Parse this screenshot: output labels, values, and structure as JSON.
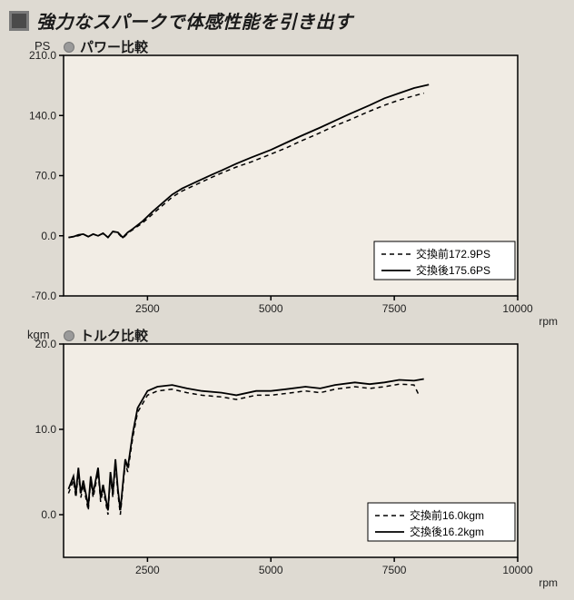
{
  "title": "強力なスパークで体感性能を引き出す",
  "background_color": "#dedad2",
  "plot_bg": "#f2ede5",
  "border_color": "#000000",
  "power_chart": {
    "type": "line",
    "title": "パワー比較",
    "y_unit": "PS",
    "x_unit": "rpm",
    "xlim": [
      800,
      10000
    ],
    "ylim": [
      -70,
      210
    ],
    "xticks": [
      2500,
      5000,
      7500,
      10000
    ],
    "yticks": [
      -70,
      0,
      70,
      140,
      210
    ],
    "ytick_labels": [
      "-70.0",
      "0.0",
      "70.0",
      "140.0",
      "210.0"
    ],
    "line_color": "#000000",
    "dash_pattern": "5 4",
    "line_width_solid": 1.8,
    "line_width_dash": 1.5,
    "legend": {
      "before": "交換前172.9PS",
      "after": "交換後175.6PS"
    },
    "series_before": {
      "rpm": [
        900,
        1000,
        1100,
        1200,
        1300,
        1400,
        1500,
        1600,
        1700,
        1800,
        1900,
        2000,
        2100,
        2200,
        2400,
        2600,
        2800,
        3000,
        3200,
        3500,
        3800,
        4000,
        4300,
        4600,
        5000,
        5300,
        5600,
        6000,
        6300,
        6600,
        7000,
        7300,
        7600,
        7900,
        8100
      ],
      "value": [
        -2,
        -1,
        0,
        2,
        -1,
        2,
        0,
        3,
        -2,
        5,
        3,
        -3,
        3,
        7,
        15,
        25,
        35,
        45,
        52,
        60,
        68,
        73,
        80,
        86,
        95,
        102,
        110,
        120,
        128,
        135,
        145,
        152,
        158,
        163,
        166
      ]
    },
    "series_after": {
      "rpm": [
        900,
        1000,
        1100,
        1200,
        1300,
        1400,
        1500,
        1600,
        1700,
        1800,
        1900,
        2000,
        2100,
        2200,
        2400,
        2600,
        2800,
        3000,
        3200,
        3500,
        3800,
        4000,
        4300,
        4600,
        5000,
        5300,
        5600,
        6000,
        6300,
        6600,
        7000,
        7300,
        7600,
        7900,
        8200
      ],
      "value": [
        -2,
        -1,
        1,
        2,
        -1,
        2,
        0,
        3,
        -2,
        5,
        4,
        -2,
        4,
        8,
        17,
        28,
        38,
        48,
        55,
        63,
        71,
        76,
        84,
        91,
        100,
        108,
        116,
        126,
        134,
        142,
        152,
        160,
        166,
        172,
        176
      ]
    }
  },
  "torque_chart": {
    "type": "line",
    "title": "トルク比較",
    "y_unit": "kgm",
    "x_unit": "rpm",
    "xlim": [
      800,
      10000
    ],
    "ylim": [
      -5,
      20
    ],
    "xticks": [
      2500,
      5000,
      7500,
      10000
    ],
    "yticks": [
      0,
      10,
      20
    ],
    "ytick_labels": [
      "0.0",
      "10.0",
      "20.0"
    ],
    "line_color": "#000000",
    "dash_pattern": "5 4",
    "line_width_solid": 1.8,
    "line_width_dash": 1.5,
    "legend": {
      "before": "交換前16.0kgm",
      "after": "交換後16.2kgm"
    },
    "series_before": {
      "rpm": [
        900,
        1000,
        1050,
        1100,
        1150,
        1200,
        1300,
        1350,
        1400,
        1500,
        1550,
        1600,
        1700,
        1750,
        1800,
        1850,
        1900,
        1950,
        2000,
        2050,
        2100,
        2200,
        2300,
        2500,
        2700,
        3000,
        3300,
        3600,
        4000,
        4300,
        4700,
        5000,
        5300,
        5700,
        6000,
        6300,
        6700,
        7000,
        7300,
        7600,
        7900,
        8000
      ],
      "value": [
        2.5,
        4.0,
        2.0,
        5.0,
        2.0,
        3.5,
        0.5,
        4.0,
        2.0,
        5.0,
        1.5,
        3.0,
        0.0,
        4.5,
        2.0,
        6.0,
        2.5,
        0.0,
        3.0,
        6.0,
        5.0,
        9.0,
        12.0,
        14.0,
        14.5,
        14.7,
        14.3,
        14.0,
        13.8,
        13.5,
        14.0,
        14.0,
        14.2,
        14.5,
        14.3,
        14.7,
        15.0,
        14.8,
        15.0,
        15.3,
        15.2,
        14.0
      ]
    },
    "series_after": {
      "rpm": [
        900,
        1000,
        1050,
        1100,
        1150,
        1200,
        1300,
        1350,
        1400,
        1500,
        1550,
        1600,
        1700,
        1750,
        1800,
        1850,
        1900,
        1950,
        2000,
        2050,
        2100,
        2200,
        2300,
        2500,
        2700,
        3000,
        3300,
        3600,
        4000,
        4300,
        4700,
        5000,
        5300,
        5700,
        6000,
        6300,
        6700,
        7000,
        7300,
        7600,
        7900,
        8100
      ],
      "value": [
        3.0,
        4.5,
        2.5,
        5.5,
        2.5,
        4.0,
        1.0,
        4.5,
        2.5,
        5.5,
        2.0,
        3.5,
        0.5,
        5.0,
        2.5,
        6.5,
        3.0,
        0.5,
        3.5,
        6.5,
        5.5,
        9.5,
        12.5,
        14.5,
        15.0,
        15.2,
        14.8,
        14.5,
        14.3,
        14.0,
        14.5,
        14.5,
        14.7,
        15.0,
        14.8,
        15.2,
        15.5,
        15.3,
        15.5,
        15.8,
        15.7,
        15.9
      ]
    }
  }
}
